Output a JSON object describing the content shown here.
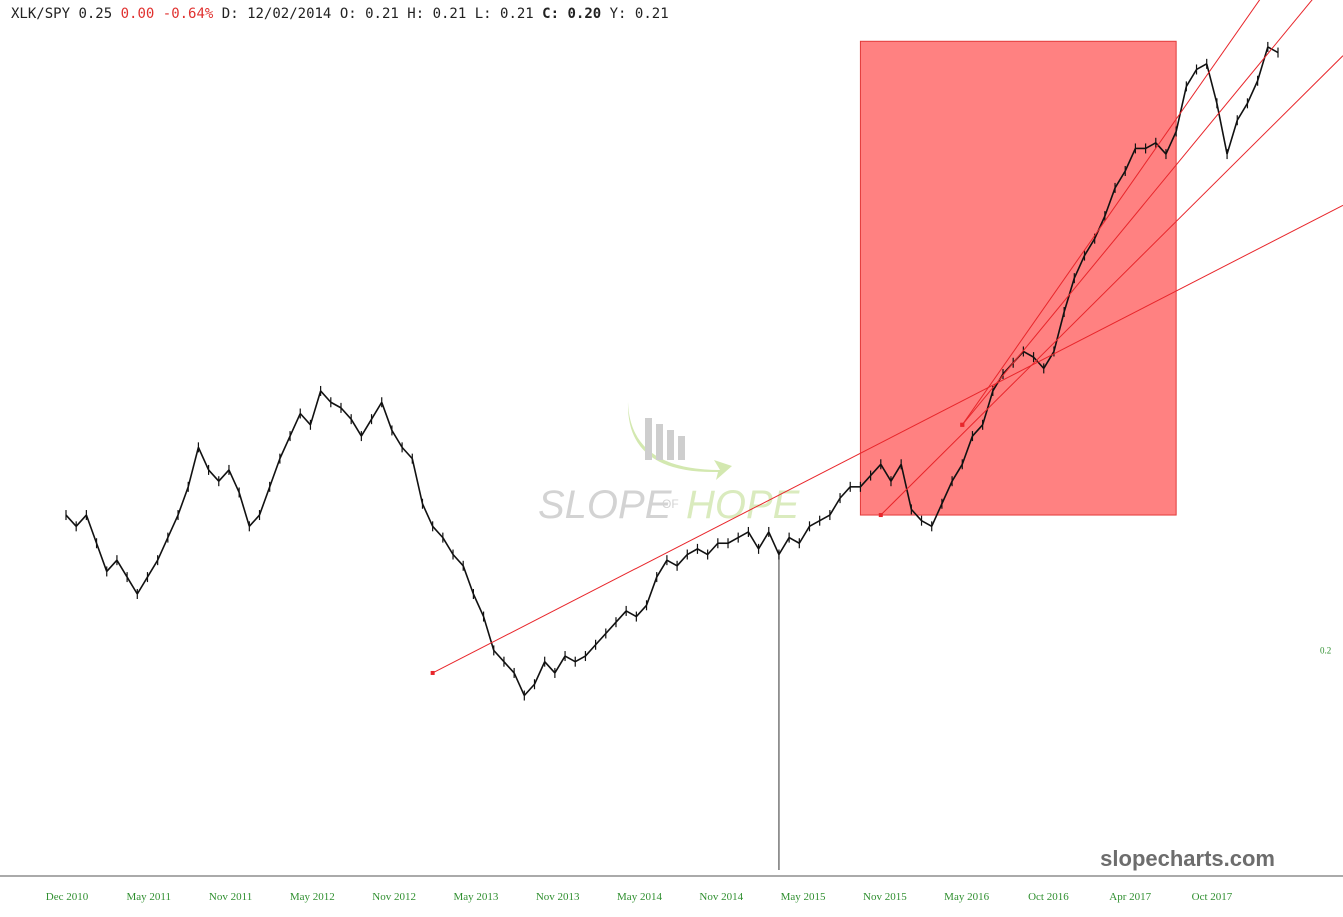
{
  "header": {
    "symbol": "XLK/SPY",
    "last": "0.25",
    "change": "0.00",
    "change_pct": "-0.64%",
    "date_label": "D:",
    "date": "12/02/2014",
    "open_label": "O:",
    "open": "0.21",
    "high_label": "H:",
    "high": "0.21",
    "low_label": "L:",
    "low": "0.21",
    "close_label": "C:",
    "close": "0.20",
    "y_label": "Y:",
    "y": "0.21"
  },
  "brand": "slopecharts.com",
  "watermark": {
    "word1": "SLOPE",
    "word2": "OF",
    "word3": "HOPE"
  },
  "colors": {
    "price": "#111111",
    "trendline": "#e8262b",
    "highlight": "#ff6b6b",
    "axis_text": "#2f8f2f",
    "negative": "#e0312f"
  },
  "chart_data": {
    "type": "line",
    "series": [
      {
        "values": [
          0.224,
          0.222,
          0.224,
          0.219,
          0.214,
          0.216,
          0.213,
          0.21,
          0.213,
          0.216,
          0.22,
          0.224,
          0.229,
          0.236,
          0.232,
          0.23,
          0.232,
          0.228,
          0.222,
          0.224,
          0.229,
          0.234,
          0.238,
          0.242,
          0.24,
          0.246,
          0.244,
          0.243,
          0.241,
          0.238,
          0.241,
          0.244,
          0.239,
          0.236,
          0.234,
          0.226,
          0.222,
          0.22,
          0.217,
          0.215,
          0.21,
          0.206,
          0.2,
          0.198,
          0.196,
          0.192,
          0.194,
          0.198,
          0.196,
          0.199,
          0.198,
          0.199,
          0.201,
          0.203,
          0.205,
          0.207,
          0.206,
          0.208,
          0.213,
          0.216,
          0.215,
          0.217,
          0.218,
          0.217,
          0.219,
          0.219,
          0.22,
          0.221,
          0.218,
          0.221,
          0.217,
          0.22,
          0.219,
          0.222,
          0.223,
          0.224,
          0.227,
          0.229,
          0.229,
          0.231,
          0.233,
          0.23,
          0.233,
          0.225,
          0.223,
          0.222,
          0.226,
          0.23,
          0.233,
          0.238,
          0.24,
          0.246,
          0.249,
          0.251,
          0.253,
          0.252,
          0.25,
          0.253,
          0.26,
          0.266,
          0.27,
          0.273,
          0.277,
          0.282,
          0.285,
          0.289,
          0.289,
          0.29,
          0.288,
          0.292,
          0.3,
          0.303,
          0.304,
          0.297,
          0.288,
          0.294,
          0.297,
          0.301,
          0.307,
          0.306
        ]
      }
    ],
    "x_tick_labels": [
      "Dec 2010",
      "May 2011",
      "Nov 2011",
      "May 2012",
      "Nov 2012",
      "May 2013",
      "Nov 2013",
      "May 2014",
      "Nov 2014",
      "May 2015",
      "Nov 2015",
      "May 2016",
      "Oct 2016",
      "Apr 2017",
      "Oct 2017"
    ],
    "y_tick_labels": [
      "0.2"
    ],
    "trendlines": [
      {
        "from_index": 36,
        "to_index": 119,
        "from": 0.196,
        "to_level_at_end": 0.273
      },
      {
        "from_index": 80,
        "to_index": 119,
        "from": 0.224,
        "to_level_at_end": 0.294
      },
      {
        "from_index": 88,
        "to_index": 119,
        "from": 0.24,
        "to_level_at_end": 0.32
      },
      {
        "from_index": 88,
        "to_index": 119,
        "from": 0.24,
        "to_level_at_end": 0.308
      }
    ],
    "highlight_box": {
      "from_index": 78,
      "to_index": 109,
      "y_from": 0.224,
      "y_to": 0.308
    },
    "vertical_marker_index": 70,
    "ylim": [
      0.16,
      0.31
    ],
    "grid": false,
    "legend": "none"
  }
}
